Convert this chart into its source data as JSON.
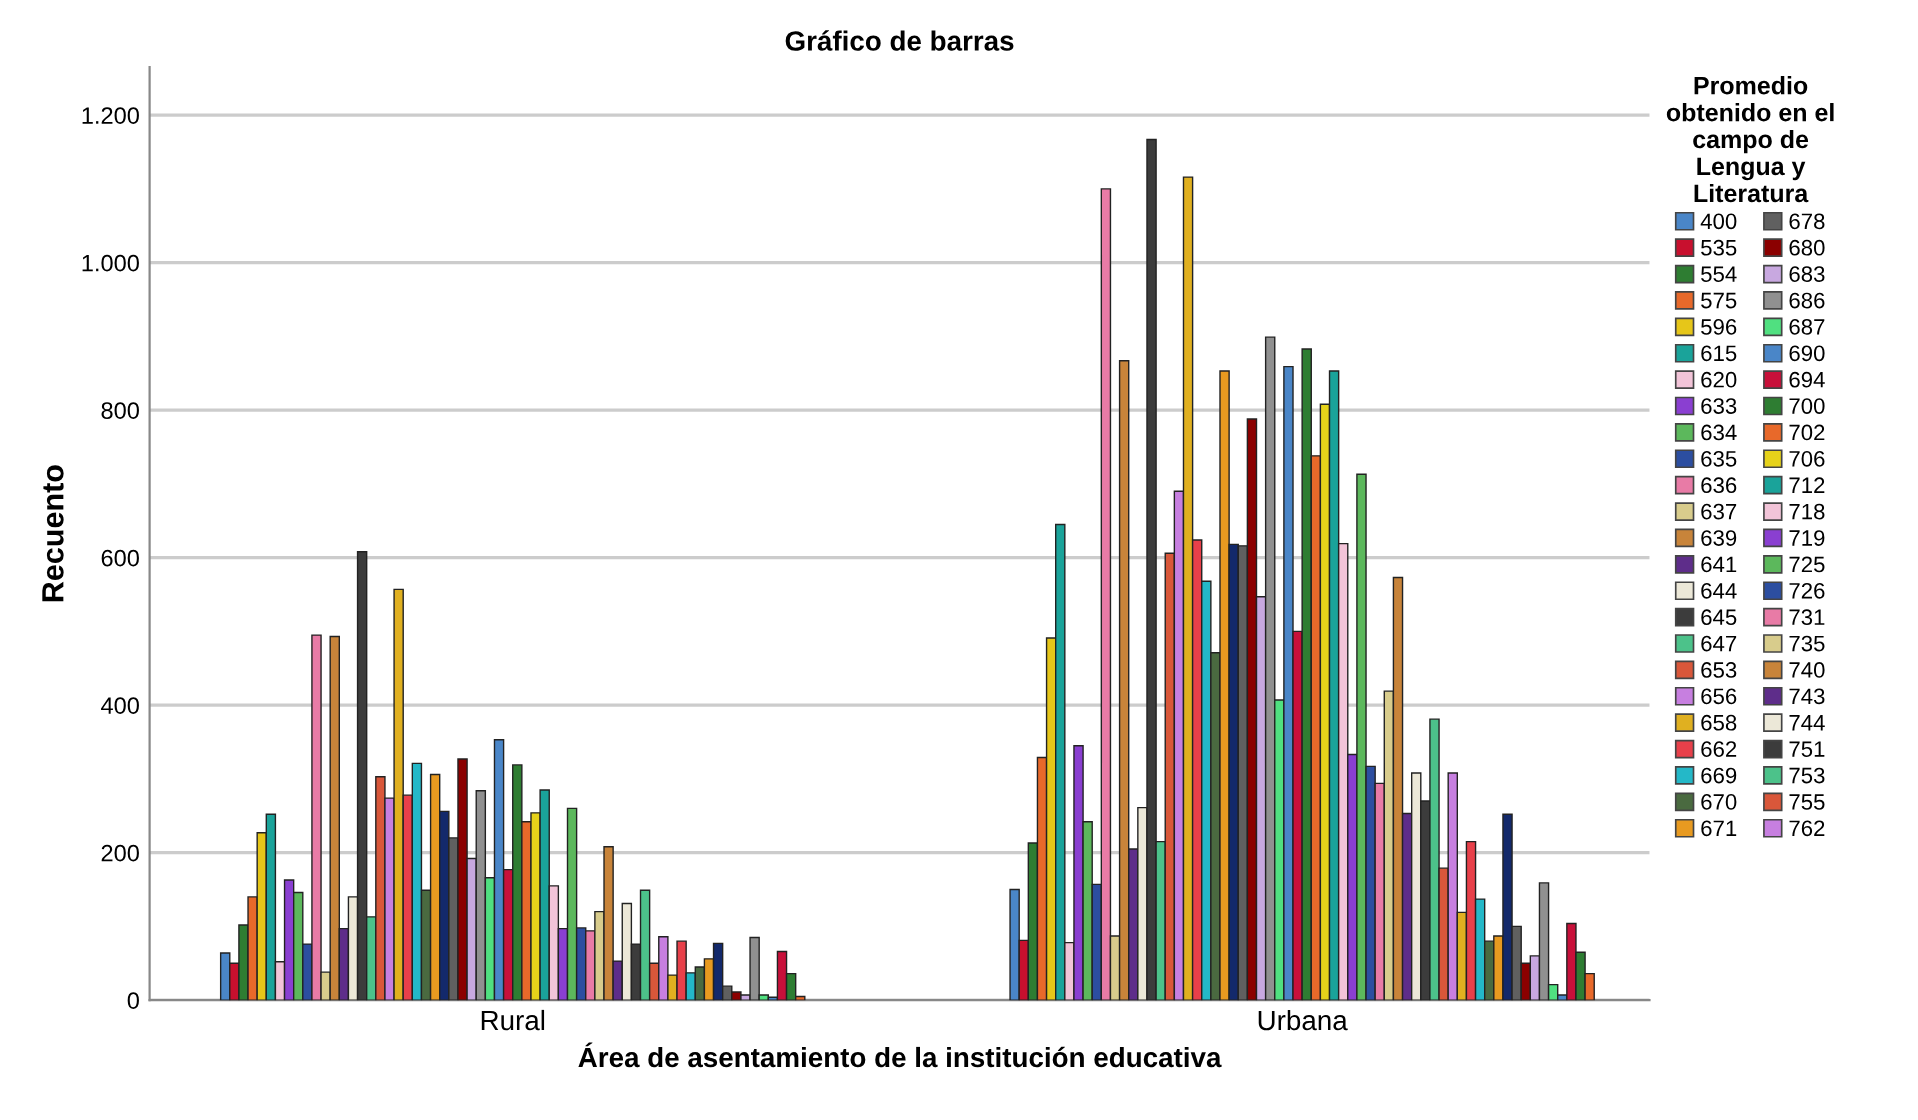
{
  "chart_data": {
    "type": "bar",
    "title": "Gráfico de barras",
    "xlabel": "Área de asentamiento de la institución educativa",
    "ylabel": "Recuento",
    "legend_title": "Promedio\nobtenido en el\ncampo de\nLengua y\nLiteratura",
    "categories": [
      "Rural",
      "Urbana"
    ],
    "ylim": [
      0,
      1265
    ],
    "yticks": [
      0,
      200,
      400,
      600,
      800,
      {
        "value": 1000,
        "label": "1.000"
      },
      {
        "value": 1200,
        "label": "1.200"
      }
    ],
    "grid": "y",
    "legend": "right",
    "series": [
      {
        "name": "400",
        "color": "#4a86c8",
        "values": [
          64,
          150
        ]
      },
      {
        "name": "535",
        "color": "#c8102e",
        "values": [
          50,
          81
        ]
      },
      {
        "name": "554",
        "color": "#2e7d32",
        "values": [
          102,
          213
        ]
      },
      {
        "name": "575",
        "color": "#e8692a",
        "values": [
          140,
          329
        ]
      },
      {
        "name": "596",
        "color": "#e6c619",
        "values": [
          227,
          491
        ]
      },
      {
        "name": "615",
        "color": "#1aa39a",
        "values": [
          252,
          645
        ]
      },
      {
        "name": "620",
        "color": "#f2c4d8",
        "values": [
          52,
          78
        ]
      },
      {
        "name": "633",
        "color": "#8a3fd1",
        "values": [
          163,
          345
        ]
      },
      {
        "name": "634",
        "color": "#5cb85c",
        "values": [
          146,
          242
        ]
      },
      {
        "name": "635",
        "color": "#2c4ea0",
        "values": [
          76,
          157
        ]
      },
      {
        "name": "636",
        "color": "#e87ba6",
        "values": [
          495,
          1100
        ]
      },
      {
        "name": "637",
        "color": "#d8cc8c",
        "values": [
          38,
          87
        ]
      },
      {
        "name": "639",
        "color": "#c8843a",
        "values": [
          493,
          867
        ]
      },
      {
        "name": "641",
        "color": "#5e2d8a",
        "values": [
          97,
          205
        ]
      },
      {
        "name": "644",
        "color": "#ece8d8",
        "values": [
          140,
          261
        ]
      },
      {
        "name": "645",
        "color": "#3c3c3c",
        "values": [
          608,
          1167
        ]
      },
      {
        "name": "647",
        "color": "#4cc28a",
        "values": [
          113,
          215
        ]
      },
      {
        "name": "653",
        "color": "#d9573a",
        "values": [
          303,
          606
        ]
      },
      {
        "name": "656",
        "color": "#c77fe0",
        "values": [
          274,
          690
        ]
      },
      {
        "name": "658",
        "color": "#e0b020",
        "values": [
          557,
          1116
        ]
      },
      {
        "name": "662",
        "color": "#e8404a",
        "values": [
          278,
          624
        ]
      },
      {
        "name": "669",
        "color": "#24b8c8",
        "values": [
          321,
          568
        ]
      },
      {
        "name": "670",
        "color": "#4a6a40",
        "values": [
          149,
          471
        ]
      },
      {
        "name": "671",
        "color": "#e89a20",
        "values": [
          306,
          853
        ]
      },
      {
        "color": "#13296b",
        "values": [
          256,
          618
        ]
      },
      {
        "name": "678",
        "color": "#606060",
        "values": [
          220,
          616
        ]
      },
      {
        "name": "680",
        "color": "#8b0000",
        "values": [
          327,
          788
        ]
      },
      {
        "name": "683",
        "color": "#c8a8e0",
        "values": [
          192,
          547
        ]
      },
      {
        "name": "686",
        "color": "#909090",
        "values": [
          284,
          899
        ]
      },
      {
        "name": "687",
        "color": "#50e080",
        "values": [
          166,
          407
        ]
      },
      {
        "name": "690",
        "color": "#4a86c8",
        "values": [
          353,
          859
        ]
      },
      {
        "name": "694",
        "color": "#c8103a",
        "values": [
          177,
          500
        ]
      },
      {
        "name": "700",
        "color": "#2e7d32",
        "values": [
          319,
          883
        ]
      },
      {
        "name": "702",
        "color": "#e8692a",
        "values": [
          242,
          738
        ]
      },
      {
        "name": "706",
        "color": "#e6d21a",
        "values": [
          254,
          808
        ]
      },
      {
        "name": "712",
        "color": "#1aa39a",
        "values": [
          285,
          853
        ]
      },
      {
        "name": "718",
        "color": "#f2c4d8",
        "values": [
          155,
          619
        ]
      },
      {
        "name": "719",
        "color": "#8a3fd1",
        "values": [
          97,
          333
        ]
      },
      {
        "name": "725",
        "color": "#5cb85c",
        "values": [
          260,
          713
        ]
      },
      {
        "name": "726",
        "color": "#2c4ea0",
        "values": [
          98,
          317
        ]
      },
      {
        "name": "731",
        "color": "#e87ba6",
        "values": [
          94,
          294
        ]
      },
      {
        "name": "735",
        "color": "#d8cc8c",
        "values": [
          120,
          419
        ]
      },
      {
        "name": "740",
        "color": "#c8843a",
        "values": [
          208,
          573
        ]
      },
      {
        "name": "743",
        "color": "#5e2d8a",
        "values": [
          53,
          253
        ]
      },
      {
        "name": "744",
        "color": "#ece8d8",
        "values": [
          131,
          308
        ]
      },
      {
        "name": "751",
        "color": "#3c3c3c",
        "values": [
          76,
          270
        ]
      },
      {
        "name": "753",
        "color": "#4cc28a",
        "values": [
          149,
          381
        ]
      },
      {
        "name": "755",
        "color": "#d9573a",
        "values": [
          50,
          179
        ]
      },
      {
        "name": "762",
        "color": "#c77fe0",
        "values": [
          86,
          308
        ]
      },
      {
        "color": "#e0b020",
        "values": [
          34,
          119
        ]
      },
      {
        "color": "#e8404a",
        "values": [
          80,
          215
        ]
      },
      {
        "color": "#24b8c8",
        "values": [
          37,
          137
        ]
      },
      {
        "color": "#4a6a40",
        "values": [
          45,
          80
        ]
      },
      {
        "color": "#e89a20",
        "values": [
          56,
          87
        ]
      },
      {
        "color": "#13296b",
        "values": [
          77,
          252
        ]
      },
      {
        "color": "#606060",
        "values": [
          19,
          100
        ]
      },
      {
        "color": "#8b0000",
        "values": [
          11,
          50
        ]
      },
      {
        "color": "#c8a8e0",
        "values": [
          7,
          60
        ]
      },
      {
        "color": "#909090",
        "values": [
          85,
          159
        ]
      },
      {
        "color": "#50e080",
        "values": [
          7,
          21
        ]
      },
      {
        "color": "#4a86c8",
        "values": [
          4,
          7
        ]
      },
      {
        "color": "#c8103a",
        "values": [
          66,
          104
        ]
      },
      {
        "color": "#2e7d32",
        "values": [
          36,
          65
        ]
      },
      {
        "color": "#e8692a",
        "values": [
          5,
          36
        ]
      }
    ]
  }
}
